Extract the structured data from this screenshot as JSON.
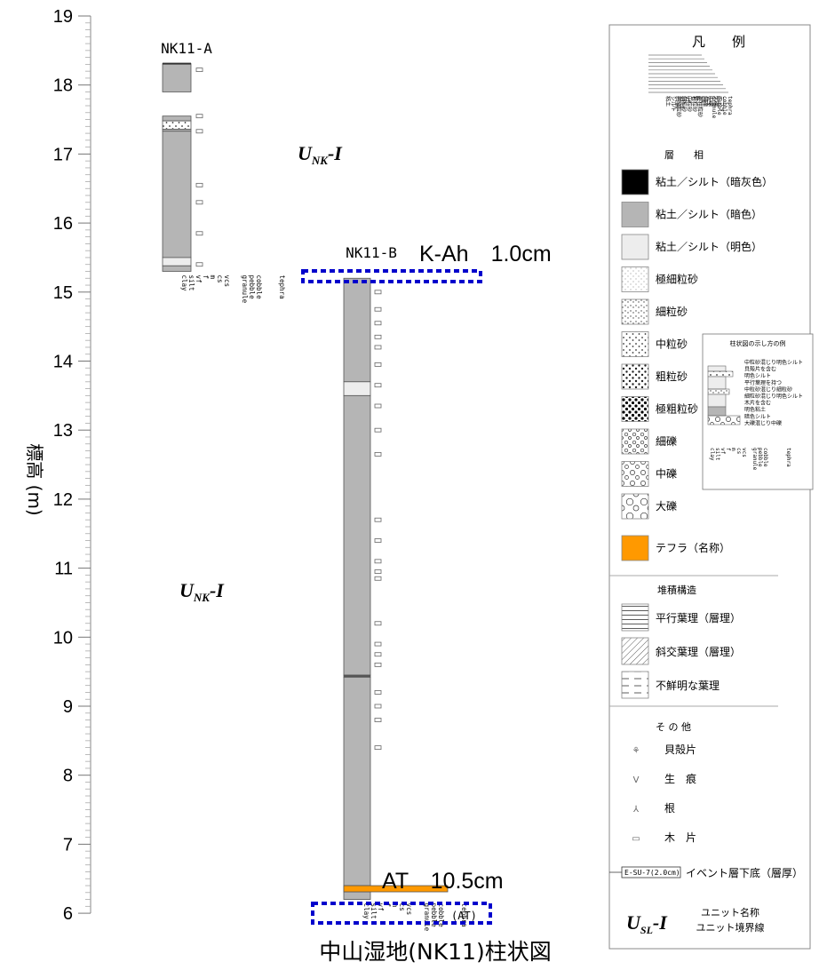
{
  "axis": {
    "label": "標高 (m)",
    "ticks": [
      "19",
      "18",
      "17",
      "16",
      "15",
      "14",
      "13",
      "12",
      "11",
      "10",
      "9",
      "8",
      "7",
      "6"
    ]
  },
  "columns": {
    "a": {
      "name": "NK11-A"
    },
    "b": {
      "name": "NK11-B"
    },
    "scale_labels": [
      "clay",
      "silt",
      "vf",
      "f",
      "m",
      "cs",
      "vcs",
      "granule",
      "pebble",
      "cobble",
      "tephra"
    ]
  },
  "units": {
    "upper": "UNK-I",
    "lower": "UNK-I",
    "main": "U",
    "sub": "NK",
    "suffix": "-I"
  },
  "callouts": {
    "top": "K-Ah　1.0cm",
    "bottom": "AT　10.5cm",
    "at_tag": "(AT)"
  },
  "caption": "中山湿地(NK11)柱状図",
  "legend": {
    "title": "凡　　例",
    "facies_header": "層　　相",
    "facies_scale": [
      "粘土",
      "シルト",
      "極細粒砂",
      "細粒砂",
      "中粒砂",
      "粗粒砂",
      "極粗粒砂",
      "細礫",
      "中礫",
      "大礫",
      "テフラ"
    ],
    "facies_scale_en": [
      "clay",
      "silt",
      "vf",
      "f",
      "m",
      "cs",
      "vcs",
      "granule",
      "pebble",
      "cobble",
      "tephra"
    ],
    "items": [
      {
        "label": "粘土／シルト（暗灰色）"
      },
      {
        "label": "粘土／シルト（暗色）"
      },
      {
        "label": "粘土／シルト（明色）"
      },
      {
        "label": "極細粒砂"
      },
      {
        "label": "細粒砂"
      },
      {
        "label": "中粒砂"
      },
      {
        "label": "粗粒砂"
      },
      {
        "label": "極粗粒砂"
      },
      {
        "label": "細礫"
      },
      {
        "label": "中礫"
      },
      {
        "label": "大礫"
      }
    ],
    "tephra": "テフラ（名称）",
    "structure_header": "堆積構造",
    "structures": [
      {
        "label": "平行葉理（層理）"
      },
      {
        "label": "斜交葉理（層理）"
      },
      {
        "label": "不鮮明な葉理"
      }
    ],
    "other_header": "そ の 他",
    "others": [
      {
        "symbol": "⚘",
        "label": "貝殻片"
      },
      {
        "symbol": "V",
        "label": "生　痕"
      },
      {
        "symbol": "⅄",
        "label": "根"
      },
      {
        "symbol": "▭",
        "label": "木　片"
      }
    ],
    "event_box": "E-SU-7(2.0cm)",
    "event_label": "イベント層下底（層厚）",
    "unit_name": "ユニット名称",
    "unit_border": "ユニット境界線",
    "unit_symbol": {
      "main": "U",
      "sub": "SL",
      "suffix": "-I"
    },
    "example": {
      "title": "柱状図の示し方の例",
      "notes": [
        "中粒砂混じり明色シルト",
        "貝殻片を含む",
        "明色シルト",
        "平行葉理を持つ",
        "中粒砂混じり細粒砂",
        "細粒砂混じり明色シルト",
        "木片を含む",
        "明色粘土",
        "暗色シルト",
        "大礫混じり中礫"
      ]
    }
  }
}
